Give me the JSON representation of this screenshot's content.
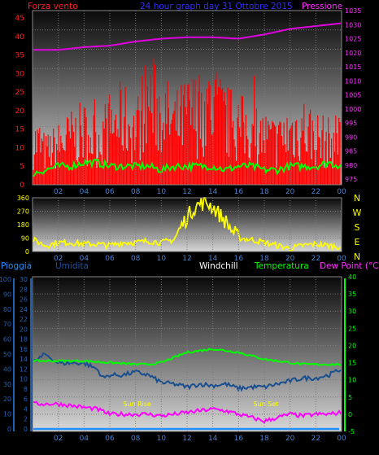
{
  "chart_data": [
    {
      "type": "line",
      "panel": "wind-pressure",
      "title": "24 hour graph day  31 Ottobre 2015",
      "left_axis_label": "Forza vento",
      "right_axis_label": "Pressione",
      "left_ticks": [
        "0",
        "5",
        "10",
        "15",
        "20",
        "25",
        "30",
        "35",
        "40",
        "45"
      ],
      "right_ticks": [
        "975",
        "980",
        "985",
        "990",
        "995",
        "1000",
        "1005",
        "1010",
        "1015",
        "1020",
        "1025",
        "1030",
        "1035"
      ],
      "x_ticks": [
        "02",
        "04",
        "06",
        "08",
        "10",
        "12",
        "14",
        "16",
        "18",
        "20",
        "22",
        "00"
      ],
      "ylim_left": [
        0,
        47
      ],
      "ylim_right": [
        973,
        1035
      ],
      "series": [
        {
          "name": "Forza vento",
          "axis": "left",
          "color": "#ff0000",
          "style": "gust-bars",
          "x": [
            0.5,
            1,
            2,
            3,
            4,
            5,
            6,
            7,
            8,
            9,
            10,
            11,
            12,
            13,
            14,
            15,
            16,
            17,
            18,
            19,
            20,
            21,
            22,
            23,
            24
          ],
          "y": [
            16,
            12,
            15,
            18,
            20,
            17,
            22,
            25,
            20,
            32,
            28,
            22,
            26,
            28,
            30,
            24,
            22,
            20,
            18,
            16,
            20,
            22,
            18,
            16,
            18
          ]
        },
        {
          "name": "Pressione",
          "axis": "right",
          "color": "#e000e0",
          "x": [
            0,
            2,
            4,
            6,
            8,
            10,
            12,
            14,
            16,
            18,
            20,
            22,
            24
          ],
          "y": [
            1021,
            1021,
            1022,
            1022.5,
            1024,
            1025,
            1025.5,
            1025.5,
            1025,
            1026.5,
            1028.5,
            1029.5,
            1030.5
          ]
        },
        {
          "name": "",
          "axis": "left",
          "color": "#00ff00",
          "x": [
            0,
            1,
            2,
            3,
            4,
            5,
            6,
            7,
            8,
            9,
            10,
            11,
            12,
            13,
            14,
            15,
            16,
            17,
            18,
            19,
            20,
            21,
            22,
            23,
            24
          ],
          "y": [
            3,
            4,
            5,
            5,
            6,
            6,
            5,
            5,
            5,
            5,
            4,
            5,
            5,
            5,
            5,
            4,
            5,
            5,
            4,
            4,
            5,
            5,
            5,
            6,
            5
          ]
        }
      ]
    },
    {
      "type": "line",
      "panel": "wind-direction",
      "left_ticks": [
        "0",
        "90",
        "180",
        "270",
        "360"
      ],
      "right_labels": [
        "N",
        "W",
        "S",
        "E",
        "N"
      ],
      "x_ticks": [
        "02",
        "04",
        "06",
        "08",
        "10",
        "12",
        "14",
        "16",
        "18",
        "20",
        "22",
        "00"
      ],
      "ylim": [
        0,
        360
      ],
      "series": [
        {
          "name": "",
          "color": "#ffff00",
          "x": [
            0,
            1,
            2,
            3,
            4,
            5,
            6,
            7,
            8,
            9,
            10,
            11,
            11.5,
            12,
            12.5,
            13,
            13.5,
            14,
            14.5,
            15,
            15.5,
            16,
            17,
            18,
            19,
            20,
            21,
            22,
            23,
            24
          ],
          "y": [
            80,
            40,
            60,
            60,
            50,
            50,
            40,
            60,
            60,
            70,
            60,
            80,
            160,
            230,
            290,
            320,
            330,
            300,
            250,
            200,
            140,
            90,
            80,
            60,
            40,
            20,
            40,
            50,
            40,
            30
          ]
        }
      ]
    },
    {
      "type": "line",
      "panel": "rain-humidity-temp",
      "labels": [
        "Pioggia",
        "Umidita",
        "Windchill",
        "Temperatura",
        "Dew Point (°C)"
      ],
      "left_ticks_mm": [
        "0",
        "2",
        "4",
        "6",
        "8",
        "10",
        "12",
        "14",
        "16",
        "18",
        "20",
        "22",
        "24",
        "26",
        "28",
        "30"
      ],
      "left_ticks_pct": [
        "0",
        "10",
        "20",
        "30",
        "40",
        "50",
        "60",
        "70",
        "80",
        "90",
        "100"
      ],
      "right_ticks_c": [
        "-5",
        "0",
        "5",
        "10",
        "15",
        "20",
        "25",
        "30",
        "35",
        "40"
      ],
      "x_ticks": [
        "02",
        "04",
        "06",
        "08",
        "10",
        "12",
        "14",
        "16",
        "18",
        "20",
        "22",
        "00"
      ],
      "ylim_temp": [
        -5,
        40
      ],
      "annotations": [
        {
          "text": "Sun Rise",
          "x": 8
        },
        {
          "text": "Sun Set",
          "x": 18
        }
      ],
      "series": [
        {
          "name": "Pioggia",
          "color": "#1e90ff",
          "x": [
            0,
            24
          ],
          "y_mm": [
            0,
            0
          ]
        },
        {
          "name": "Umidita",
          "color": "#1a4f8f",
          "x": [
            0,
            1,
            2,
            3,
            4,
            5,
            5.5,
            6,
            7,
            8,
            9,
            10,
            11,
            12,
            13,
            14,
            15,
            16,
            17,
            18,
            19,
            20,
            21,
            22,
            23,
            24
          ],
          "y_pct": [
            44,
            50,
            44,
            44,
            44,
            40,
            34,
            36,
            36,
            38,
            36,
            31,
            30,
            28,
            30,
            29,
            30,
            27,
            28,
            28,
            30,
            32,
            34,
            34,
            36,
            40
          ]
        },
        {
          "name": "Temperatura",
          "color": "#00ff00",
          "x": [
            0,
            2,
            4,
            6,
            8,
            9,
            10,
            11,
            12,
            13,
            14,
            15,
            16,
            17,
            18,
            19,
            20,
            21,
            22,
            23,
            24
          ],
          "y": [
            15.5,
            15.5,
            15.5,
            15,
            14.5,
            14.5,
            15,
            16.5,
            18,
            18.5,
            19,
            18.5,
            18,
            17,
            16,
            15.5,
            15,
            14.5,
            14.5,
            14.5,
            14.5
          ]
        },
        {
          "name": "Dew Point (°C)",
          "color": "#ff00ff",
          "x": [
            0,
            2,
            3,
            4,
            5,
            6,
            7,
            8,
            9,
            10,
            11,
            12,
            13,
            14,
            15,
            16,
            17,
            18,
            19,
            20,
            21,
            22,
            23,
            24
          ],
          "y": [
            3,
            3,
            2.5,
            2,
            1.5,
            0,
            0,
            0,
            0,
            -0.5,
            0,
            0.5,
            1,
            1.5,
            1,
            0,
            -1,
            -2,
            -1,
            0,
            -0.5,
            0,
            0,
            0.5
          ]
        }
      ]
    }
  ]
}
